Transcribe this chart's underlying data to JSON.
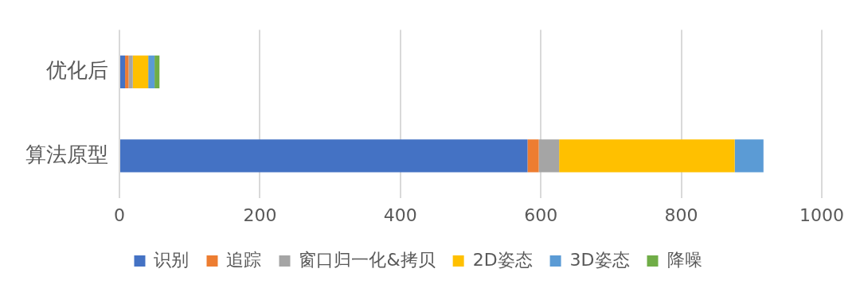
{
  "chart_data": {
    "type": "bar",
    "orientation": "horizontal",
    "stacked": true,
    "categories": [
      "优化后",
      "算法原型"
    ],
    "series": [
      {
        "name": "识别",
        "color": "#4472c4",
        "values": [
          8,
          581
        ]
      },
      {
        "name": "追踪",
        "color": "#ed7d31",
        "values": [
          5,
          16
        ]
      },
      {
        "name": "窗口归一化&拷贝",
        "color": "#a5a5a5",
        "values": [
          6,
          29
        ]
      },
      {
        "name": "2D姿态",
        "color": "#ffc000",
        "values": [
          22,
          250
        ]
      },
      {
        "name": "3D姿态",
        "color": "#5b9bd5",
        "values": [
          9,
          41
        ]
      },
      {
        "name": "降噪",
        "color": "#70ad47",
        "values": [
          7,
          0
        ]
      }
    ],
    "xlim": [
      0,
      1000
    ],
    "xticks": [
      0,
      200,
      400,
      600,
      800,
      1000
    ],
    "grid": "x",
    "legend": "bottom"
  }
}
